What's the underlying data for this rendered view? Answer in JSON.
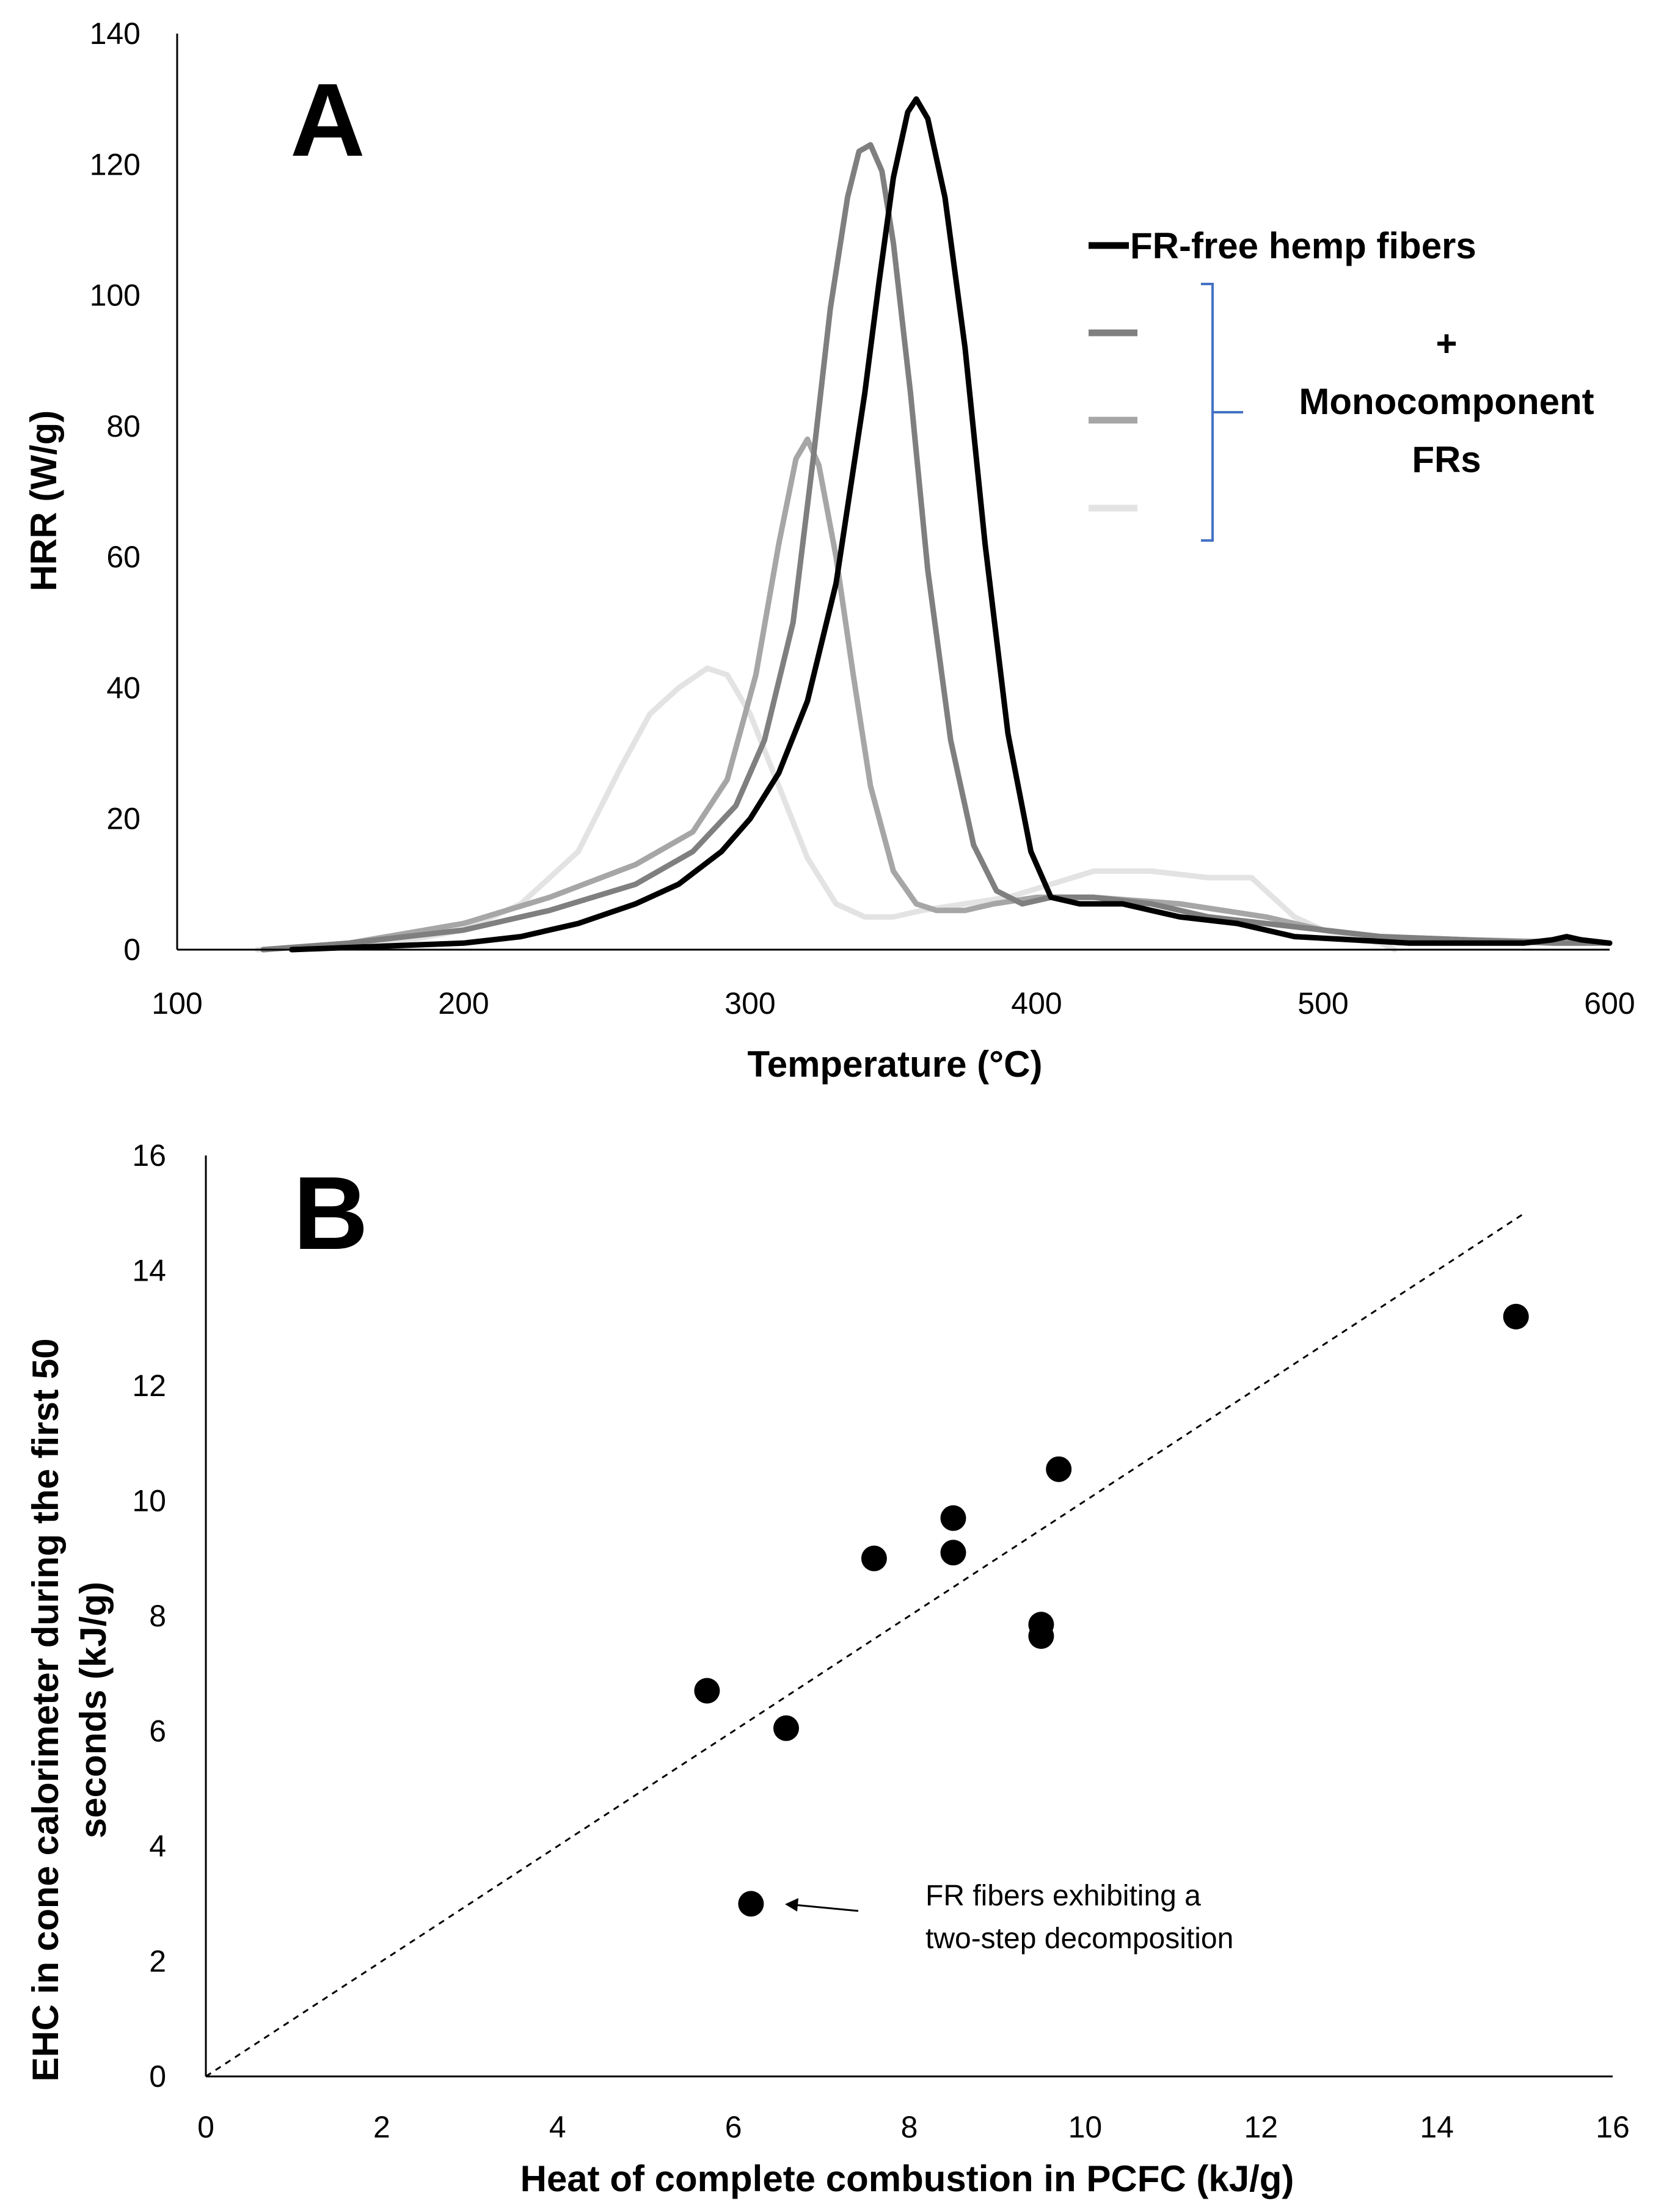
{
  "chart_data": [
    {
      "type": "line",
      "panel": "A",
      "xlabel": "Temperature (°C)",
      "ylabel": "HRR (W/g)",
      "xlim": [
        100,
        600
      ],
      "ylim": [
        0,
        140
      ],
      "xticks": [
        "100",
        "200",
        "300",
        "400",
        "500",
        "600"
      ],
      "yticks": [
        "0",
        "20",
        "40",
        "60",
        "80",
        "100",
        "120",
        "140"
      ],
      "grid": false,
      "legend": {
        "placement": "right",
        "main_label": "FR-free hemp fibers",
        "group_plus": "+",
        "group_line1": "Monocomponent",
        "group_line2": "FRs"
      },
      "series": [
        {
          "name": "FR-free hemp fibers",
          "color": "#000000",
          "x": [
            140,
            170,
            200,
            220,
            240,
            260,
            275,
            290,
            300,
            310,
            320,
            330,
            340,
            345,
            350,
            355,
            358,
            362,
            368,
            375,
            382,
            390,
            398,
            405,
            415,
            430,
            450,
            470,
            490,
            510,
            530,
            550,
            570,
            580,
            585,
            590,
            600
          ],
          "y": [
            0,
            0.5,
            1,
            2,
            4,
            7,
            10,
            15,
            20,
            27,
            38,
            56,
            85,
            102,
            118,
            128,
            130,
            127,
            115,
            92,
            62,
            33,
            15,
            8,
            7,
            7,
            5,
            4,
            2,
            1.5,
            1,
            1,
            1,
            1.5,
            2,
            1.5,
            1
          ]
        },
        {
          "name": "",
          "color": "#7f7f7f",
          "x": [
            130,
            160,
            200,
            230,
            260,
            280,
            295,
            305,
            315,
            322,
            328,
            334,
            338,
            342,
            346,
            350,
            356,
            362,
            370,
            378,
            386,
            395,
            405,
            420,
            440,
            460,
            480,
            500,
            520,
            550,
            580,
            600
          ],
          "y": [
            0,
            1,
            3,
            6,
            10,
            15,
            22,
            32,
            50,
            75,
            98,
            115,
            122,
            123,
            119,
            108,
            85,
            58,
            32,
            16,
            9,
            7,
            8,
            8,
            7,
            5,
            4,
            3,
            2,
            1.5,
            1,
            1
          ]
        },
        {
          "name": "",
          "color": "#a6a6a6",
          "x": [
            130,
            160,
            200,
            230,
            260,
            280,
            292,
            302,
            310,
            316,
            320,
            324,
            330,
            336,
            342,
            350,
            358,
            365,
            375,
            385,
            400,
            420,
            450,
            480,
            500,
            520,
            550,
            600
          ],
          "y": [
            0,
            1,
            4,
            8,
            13,
            18,
            26,
            42,
            62,
            75,
            78,
            74,
            60,
            42,
            25,
            12,
            7,
            6,
            6,
            7,
            8,
            8,
            7,
            5,
            3,
            2,
            1.5,
            1
          ]
        },
        {
          "name": "",
          "color": "#e3e3e3",
          "x": [
            128,
            150,
            175,
            200,
            220,
            240,
            255,
            265,
            275,
            285,
            292,
            300,
            310,
            320,
            330,
            340,
            350,
            360,
            375,
            390,
            405,
            420,
            440,
            460,
            475,
            480,
            490,
            500,
            510,
            520,
            525
          ],
          "y": [
            0,
            0.5,
            1,
            3,
            7,
            15,
            28,
            36,
            40,
            43,
            42,
            36,
            25,
            14,
            7,
            5,
            5,
            6,
            7,
            8,
            10,
            12,
            12,
            11,
            11,
            9,
            5,
            3,
            2,
            1,
            0
          ]
        }
      ]
    },
    {
      "type": "scatter",
      "panel": "B",
      "xlabel": "Heat of complete combustion in PCFC (kJ/g)",
      "ylabel_line1": "EHC in cone calorimeter during the first 50",
      "ylabel_line2": "seconds (kJ/g)",
      "xlim": [
        0,
        16
      ],
      "ylim": [
        0,
        16
      ],
      "xticks": [
        "0",
        "2",
        "4",
        "6",
        "8",
        "10",
        "12",
        "14",
        "16"
      ],
      "yticks": [
        "0",
        "2",
        "4",
        "6",
        "8",
        "10",
        "12",
        "14",
        "16"
      ],
      "grid": false,
      "reference_line": {
        "x": [
          0,
          15
        ],
        "y": [
          0,
          15
        ],
        "style": "dashed"
      },
      "points": {
        "x": [
          5.7,
          6.6,
          6.2,
          7.6,
          8.5,
          8.5,
          9.5,
          9.5,
          9.7,
          14.9
        ],
        "y": [
          6.7,
          6.05,
          3.0,
          9.0,
          9.7,
          9.1,
          7.85,
          7.65,
          10.55,
          13.2
        ]
      },
      "annotation": {
        "line1": "FR fibers exhibiting a",
        "line2": "two-step decomposition",
        "target_x": 6.2,
        "target_y": 3.0
      }
    }
  ]
}
